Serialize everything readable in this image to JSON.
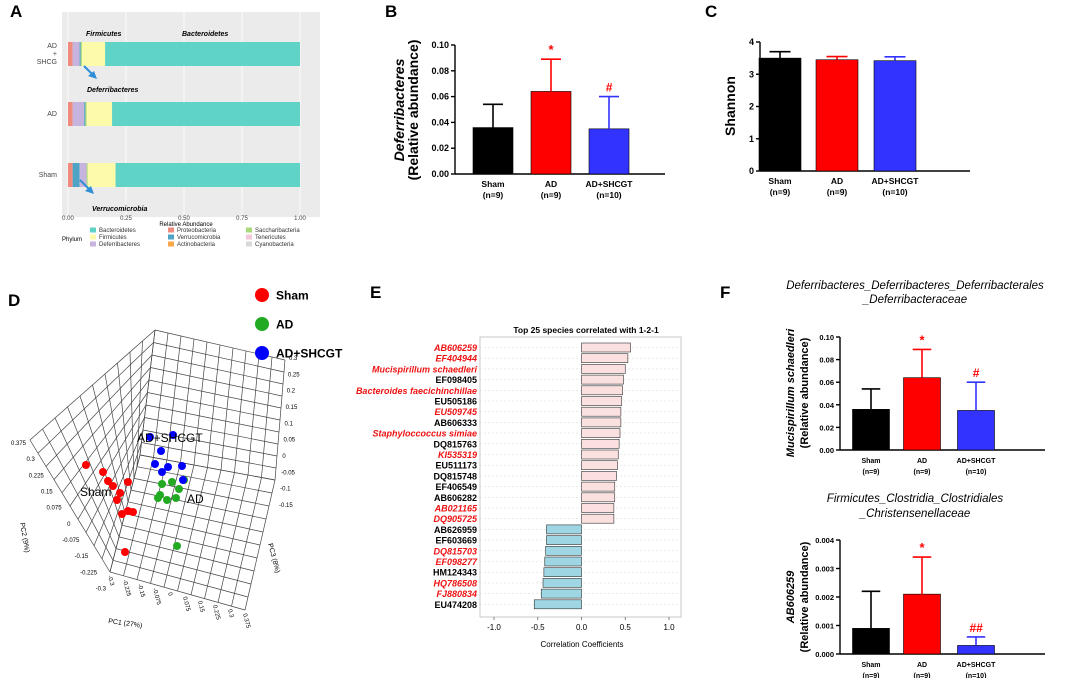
{
  "panels": {
    "A": "A",
    "B": "B",
    "C": "C",
    "D": "D",
    "E": "E",
    "F": "F"
  },
  "colors": {
    "sham": "#000000",
    "ad": "#ff0000",
    "shcgt": "#3333ff",
    "significance": "#ff0000",
    "pos_bar": "#fbe0e0",
    "neg_bar": "#9fd6e3"
  },
  "chart_data": [
    {
      "id": "A",
      "type": "bar",
      "stacked": true,
      "orientation": "horizontal",
      "groups": [
        "AD\n+\nSHCG",
        "AD",
        "Sham"
      ],
      "xlabel": "Relative Abundance",
      "xlim": [
        0,
        1
      ],
      "xticks": [
        "0.00",
        "0.25",
        "0.50",
        "0.75",
        "1.00"
      ],
      "annotations": [
        "Firmicutes",
        "Bacteroidetes",
        "Deferribacteres",
        "Verrucomicrobia"
      ],
      "legend_title": "Phylum",
      "legend": [
        {
          "name": "Bacteroidetes",
          "color": "#5fd3c5"
        },
        {
          "name": "Firmicutes",
          "color": "#fdfbaa"
        },
        {
          "name": "Deferribacteres",
          "color": "#c7b4de"
        },
        {
          "name": "Proteobacteria",
          "color": "#f08a7c"
        },
        {
          "name": "Verrucomicrobia",
          "color": "#4fa3c4"
        },
        {
          "name": "Actinobacteria",
          "color": "#f7a64a"
        },
        {
          "name": "Saccharibacteria",
          "color": "#a8d97a"
        },
        {
          "name": "Tenericutes",
          "color": "#f3c6d9"
        },
        {
          "name": "Cyanobacteria",
          "color": "#d8d8d8"
        }
      ],
      "series_values": [
        [
          {
            "name": "Proteobacteria",
            "v": 0.02
          },
          {
            "name": "Deferribacteres",
            "v": 0.03
          },
          {
            "name": "Verrucomicrobia",
            "v": 0.005
          },
          {
            "name": "Saccharibacteria",
            "v": 0.005
          },
          {
            "name": "Firmicutes",
            "v": 0.1
          },
          {
            "name": "Bacteroidetes",
            "v": 0.84
          }
        ],
        [
          {
            "name": "Proteobacteria",
            "v": 0.02
          },
          {
            "name": "Deferribacteres",
            "v": 0.05
          },
          {
            "name": "Verrucomicrobia",
            "v": 0.005
          },
          {
            "name": "Saccharibacteria",
            "v": 0.005
          },
          {
            "name": "Firmicutes",
            "v": 0.11
          },
          {
            "name": "Bacteroidetes",
            "v": 0.81
          }
        ],
        [
          {
            "name": "Proteobacteria",
            "v": 0.02
          },
          {
            "name": "Verrucomicrobia",
            "v": 0.03
          },
          {
            "name": "Deferribacteres",
            "v": 0.03
          },
          {
            "name": "Saccharibacteria",
            "v": 0.005
          },
          {
            "name": "Firmicutes",
            "v": 0.12
          },
          {
            "name": "Bacteroidetes",
            "v": 0.795
          }
        ]
      ]
    },
    {
      "id": "B",
      "type": "bar",
      "ylabel_italic": "Deferribacteres",
      "ylabel": "(Relative abundance)",
      "categories": [
        "Sham",
        "AD",
        "AD+SHCGT"
      ],
      "ns": [
        "(n=9)",
        "(n=9)",
        "(n=10)"
      ],
      "values": [
        0.036,
        0.064,
        0.035
      ],
      "errors": [
        0.018,
        0.025,
        0.025
      ],
      "marks": [
        "",
        "*",
        "#"
      ],
      "ylim": [
        0,
        0.1
      ],
      "yticks": [
        "0.00",
        "0.02",
        "0.04",
        "0.06",
        "0.08",
        "0.10"
      ]
    },
    {
      "id": "C",
      "type": "bar",
      "ylabel": "Shannon",
      "categories": [
        "Sham",
        "AD",
        "AD+SHCGT"
      ],
      "ns": [
        "(n=9)",
        "(n=9)",
        "(n=10)"
      ],
      "values": [
        3.5,
        3.45,
        3.42
      ],
      "errors": [
        0.2,
        0.1,
        0.12
      ],
      "marks": [
        "",
        "",
        ""
      ],
      "ylim": [
        0,
        4
      ],
      "yticks": [
        "0",
        "1",
        "2",
        "3",
        "4"
      ]
    },
    {
      "id": "D",
      "type": "scatter",
      "legend": [
        {
          "name": "Sham",
          "color": "#ff0000"
        },
        {
          "name": "AD",
          "color": "#22aa22"
        },
        {
          "name": "AD+SHCGT",
          "color": "#0000ff"
        }
      ],
      "labels": [
        "AD+SHCGT",
        "Sham",
        "AD"
      ],
      "axis_titles": [
        "PC1 (27%)",
        "PC2 (9%)",
        "PC3 (8%)"
      ],
      "tick_sets": {
        "left": [
          "0.375",
          "0.3",
          "0.225",
          "0.15",
          "0.075",
          "0",
          "-0.075",
          "-0.15",
          "-0.225",
          "-0.3"
        ],
        "bottom": [
          "-0.3",
          "-0.225",
          "-0.15",
          "-0.075",
          "0",
          "0.075",
          "0.15",
          "0.225",
          "0.3",
          "0.375"
        ],
        "right": [
          "0.3",
          "0.25",
          "0.2",
          "0.15",
          "0.1",
          "0.05",
          "0",
          "-0.05",
          "-0.1",
          "-0.15"
        ]
      }
    },
    {
      "id": "E",
      "type": "bar",
      "orientation": "horizontal",
      "title": "Top 25 species correlated with 1-2-1",
      "xlabel": "Correlation Coefficients",
      "xlim": [
        -1,
        1
      ],
      "xticks": [
        "-1.0",
        "-0.5",
        "0.0",
        "0.5",
        "1.0"
      ],
      "species": [
        {
          "name": "AB606259",
          "v": 0.56,
          "red": true
        },
        {
          "name": "EF404944",
          "v": 0.53,
          "red": true
        },
        {
          "name": "Mucispirillum schaedleri",
          "v": 0.5,
          "red": true
        },
        {
          "name": "EF098405",
          "v": 0.48,
          "red": false
        },
        {
          "name": "Bacteroides faecichinchillae",
          "v": 0.47,
          "red": true
        },
        {
          "name": "EU505186",
          "v": 0.46,
          "red": false
        },
        {
          "name": "EU509745",
          "v": 0.45,
          "red": true
        },
        {
          "name": "AB606333",
          "v": 0.45,
          "red": false
        },
        {
          "name": "Staphyloccoccus simiae",
          "v": 0.44,
          "red": true
        },
        {
          "name": "DQ815763",
          "v": 0.43,
          "red": false
        },
        {
          "name": "KI535319",
          "v": 0.42,
          "red": true
        },
        {
          "name": "EU511173",
          "v": 0.41,
          "red": false
        },
        {
          "name": "DQ815748",
          "v": 0.4,
          "red": false
        },
        {
          "name": "EF406549",
          "v": 0.38,
          "red": false
        },
        {
          "name": "AB606282",
          "v": 0.38,
          "red": false
        },
        {
          "name": "AB021165",
          "v": 0.37,
          "red": true
        },
        {
          "name": "DQ905725",
          "v": 0.37,
          "red": true
        },
        {
          "name": "AB626959",
          "v": -0.4,
          "red": false
        },
        {
          "name": "EF603669",
          "v": -0.4,
          "red": false
        },
        {
          "name": "DQ815703",
          "v": -0.41,
          "red": true
        },
        {
          "name": "EF098277",
          "v": -0.42,
          "red": true
        },
        {
          "name": "HM124343",
          "v": -0.43,
          "red": false
        },
        {
          "name": "HQ786508",
          "v": -0.44,
          "red": true
        },
        {
          "name": "FJ880834",
          "v": -0.46,
          "red": true
        },
        {
          "name": "EU474208",
          "v": -0.54,
          "red": false
        }
      ]
    },
    {
      "id": "F1",
      "type": "bar",
      "title_line1": "Deferribacteres_Deferribacteres_Deferribacterales",
      "title_line2": "_Deferribacteraceae",
      "ylabel_italic": "Mucispirillum schaedleri",
      "ylabel": "(Relative abundance)",
      "categories": [
        "Sham",
        "AD",
        "AD+SHCGT"
      ],
      "ns": [
        "(n=9)",
        "(n=9)",
        "(n=10)"
      ],
      "values": [
        0.036,
        0.064,
        0.035
      ],
      "errors": [
        0.018,
        0.025,
        0.025
      ],
      "marks": [
        "",
        "*",
        "#"
      ],
      "ylim": [
        0,
        0.1
      ],
      "yticks": [
        "0.00",
        "0.02",
        "0.04",
        "0.06",
        "0.08",
        "0.10"
      ]
    },
    {
      "id": "F2",
      "type": "bar",
      "title_line1": "Firmicutes_Clostridia_Clostridiales",
      "title_line2": "_Christensenellaceae",
      "ylabel_italic": "AB606259",
      "ylabel": "(Relative abundance)",
      "categories": [
        "Sham",
        "AD",
        "AD+SHCGT"
      ],
      "ns": [
        "(n=9)",
        "(n=9)",
        "(n=10)"
      ],
      "values": [
        0.0009,
        0.0021,
        0.0003
      ],
      "errors": [
        0.0013,
        0.0013,
        0.0003
      ],
      "marks": [
        "",
        "*",
        "##"
      ],
      "ylim": [
        0,
        0.004
      ],
      "yticks": [
        "0.000",
        "0.001",
        "0.002",
        "0.003",
        "0.004"
      ]
    }
  ]
}
